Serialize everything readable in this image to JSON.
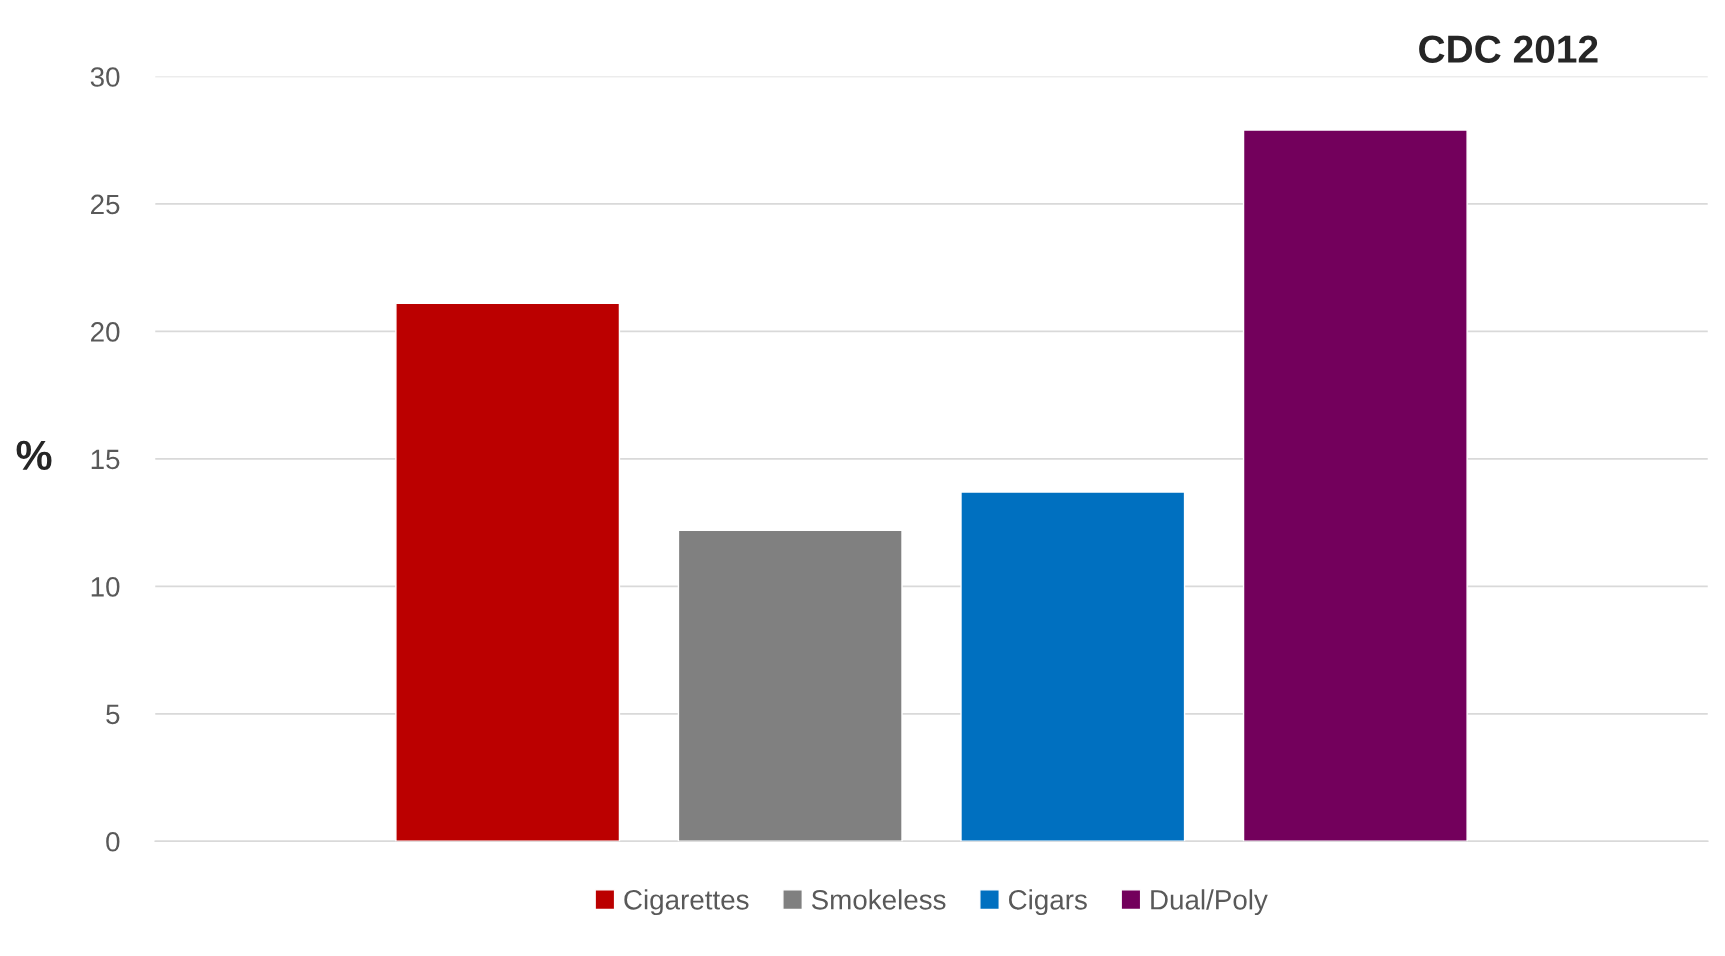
{
  "chart_data": {
    "type": "bar",
    "title": "CDC 2012",
    "ylabel": "%",
    "categories": [
      null
    ],
    "series": [
      {
        "name": "Cigarettes",
        "color": "#bb0000",
        "values": [
          21.1
        ]
      },
      {
        "name": "Smokeless",
        "color": "#808080",
        "values": [
          12.2
        ]
      },
      {
        "name": "Cigars",
        "color": "#0070c0",
        "values": [
          13.7
        ]
      },
      {
        "name": "Dual/Poly",
        "color": "#73005c",
        "values": [
          27.9
        ]
      }
    ],
    "ylim": [
      0,
      30
    ],
    "yticks": [
      0,
      5,
      10,
      15,
      20,
      25,
      30
    ],
    "grid": "y",
    "legend": "bottom"
  }
}
